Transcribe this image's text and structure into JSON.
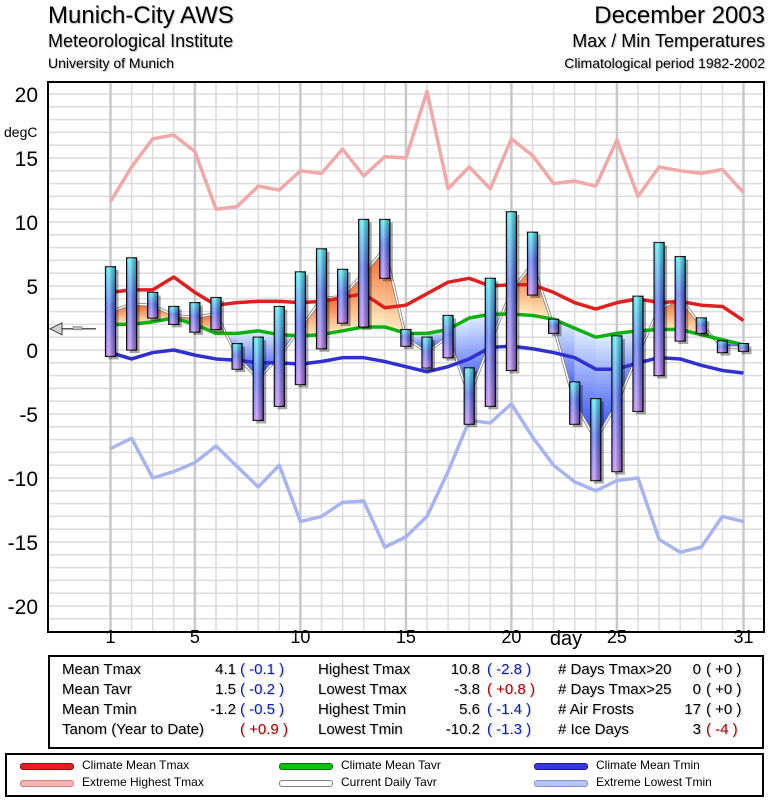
{
  "header": {
    "station": "Munich-City AWS",
    "institute": "Meteorological Institute",
    "university": "University of Munich",
    "month": "December 2003",
    "subtitle": "Max / Min Temperatures",
    "period": "Climatological period 1982-2002"
  },
  "chart_data": {
    "type": "bar",
    "title": "Max / Min Temperatures",
    "xlabel": "day",
    "ylabel": "degC",
    "ylim": [
      -20,
      20
    ],
    "xlim": [
      1,
      31
    ],
    "grid": true,
    "x_tick_labels": [
      "1",
      "5",
      "10",
      "15",
      "20",
      "25",
      "31"
    ],
    "y_tick_labels": [
      "20",
      "15",
      "10",
      "5",
      "0",
      "-5",
      "-10",
      "-15",
      "-20"
    ],
    "days": [
      1,
      2,
      3,
      4,
      5,
      6,
      7,
      8,
      9,
      10,
      11,
      12,
      13,
      14,
      15,
      16,
      17,
      18,
      19,
      20,
      21,
      22,
      23,
      24,
      25,
      26,
      27,
      28,
      29,
      30,
      31
    ],
    "daily_tmax": [
      6.5,
      7.2,
      4.5,
      3.4,
      3.7,
      4.1,
      0.5,
      1.0,
      3.4,
      6.1,
      7.9,
      6.3,
      10.2,
      10.2,
      1.6,
      1.0,
      2.7,
      -1.4,
      5.6,
      10.8,
      9.2,
      2.4,
      -2.5,
      -3.8,
      1.1,
      4.2,
      8.4,
      7.3,
      2.5,
      0.7,
      0.5
    ],
    "daily_tmin": [
      -0.5,
      0.0,
      2.5,
      2.0,
      1.4,
      1.6,
      -1.5,
      -5.5,
      -4.4,
      -2.7,
      0.1,
      2.1,
      1.8,
      5.6,
      0.3,
      -1.4,
      -0.6,
      -5.8,
      -4.4,
      -1.6,
      4.3,
      1.3,
      -5.8,
      -10.2,
      -9.5,
      -4.8,
      -2.0,
      0.7,
      1.3,
      -0.2,
      -0.1
    ],
    "series": [
      {
        "name": "Climate Mean Tmax",
        "color": "#e02020",
        "values": [
          4.5,
          4.7,
          4.7,
          5.7,
          4.5,
          3.5,
          3.7,
          3.8,
          3.8,
          3.7,
          3.8,
          4.1,
          4.4,
          3.3,
          3.5,
          4.4,
          5.3,
          5.6,
          5.0,
          5.1,
          5.1,
          4.5,
          3.7,
          3.2,
          3.7,
          4.0,
          3.7,
          3.8,
          3.5,
          3.4,
          2.3
        ]
      },
      {
        "name": "Extreme Highest Tmax",
        "color": "#f0a8a8",
        "values": [
          11.6,
          14.3,
          16.5,
          16.8,
          15.5,
          11.0,
          11.2,
          12.8,
          12.5,
          14.0,
          13.8,
          15.7,
          13.6,
          15.1,
          15.0,
          20.2,
          12.6,
          14.3,
          12.6,
          16.5,
          15.2,
          13.0,
          13.2,
          12.8,
          16.4,
          12.0,
          14.3,
          14.0,
          13.8,
          14.1,
          12.3
        ]
      },
      {
        "name": "Climate Mean Tavr",
        "color": "#10b010",
        "values": [
          2.0,
          2.0,
          2.2,
          2.5,
          2.0,
          1.3,
          1.3,
          1.5,
          1.2,
          1.1,
          1.2,
          1.5,
          1.8,
          1.8,
          1.3,
          1.3,
          1.6,
          2.5,
          2.8,
          2.8,
          2.7,
          2.4,
          1.7,
          1.0,
          1.3,
          1.5,
          1.6,
          1.6,
          1.2,
          0.8,
          0.4
        ]
      },
      {
        "name": "Current Daily Tavr",
        "color": "#b0b0b0",
        "values": [
          3.0,
          3.6,
          3.5,
          2.7,
          2.55,
          2.85,
          -0.5,
          -2.25,
          -0.5,
          1.7,
          4.0,
          4.2,
          6.0,
          7.9,
          0.95,
          -0.2,
          1.05,
          -3.6,
          0.6,
          4.6,
          6.75,
          1.85,
          -4.15,
          -7.0,
          -4.2,
          -0.3,
          3.2,
          4.0,
          1.9,
          0.25,
          0.2
        ]
      },
      {
        "name": "Climate Mean Tmin",
        "color": "#3030d0",
        "values": [
          -0.2,
          -0.7,
          -0.2,
          0.0,
          -0.4,
          -0.7,
          -0.8,
          -1.0,
          -1.0,
          -1.1,
          -0.9,
          -0.6,
          -0.6,
          -0.9,
          -1.3,
          -1.7,
          -1.3,
          -0.7,
          0.2,
          0.3,
          0.1,
          -0.2,
          -0.6,
          -1.5,
          -1.5,
          -1.0,
          -0.6,
          -0.7,
          -1.2,
          -1.6,
          -1.8
        ]
      },
      {
        "name": "Extreme Lowest Tmin",
        "color": "#a8b4f0",
        "values": [
          -7.7,
          -6.9,
          -10.0,
          -9.5,
          -8.8,
          -7.5,
          -9.1,
          -10.7,
          -9.0,
          -13.4,
          -13.0,
          -11.9,
          -11.8,
          -15.4,
          -14.6,
          -13.0,
          -9.5,
          -5.5,
          -5.7,
          -4.2,
          -6.8,
          -9.0,
          -10.3,
          -11.0,
          -10.2,
          -10.0,
          -14.8,
          -15.8,
          -15.4,
          -13.0,
          -13.4
        ]
      }
    ],
    "monthly_mean_marker": 1.5,
    "legend_position": "bottom"
  },
  "stats": {
    "col1": [
      {
        "label": "Mean Tmax",
        "value": "4.1",
        "diff": "( -0.1 )",
        "diff_color": "blue"
      },
      {
        "label": "Mean Tavr",
        "value": "1.5",
        "diff": "( -0.2 )",
        "diff_color": "blue"
      },
      {
        "label": "Mean Tmin",
        "value": "-1.2",
        "diff": "( -0.5 )",
        "diff_color": "blue"
      },
      {
        "label": "Tanom (Year to Date)",
        "value": "",
        "diff": "( +0.9 )",
        "diff_color": "red"
      }
    ],
    "col2": [
      {
        "label": "Highest Tmax",
        "value": "10.8",
        "diff": "( -2.8 )",
        "diff_color": "blue"
      },
      {
        "label": "Lowest Tmax",
        "value": "-3.8",
        "diff": "( +0.8 )",
        "diff_color": "red"
      },
      {
        "label": "Highest Tmin",
        "value": "5.6",
        "diff": "( -1.4 )",
        "diff_color": "blue"
      },
      {
        "label": "Lowest Tmin",
        "value": "-10.2",
        "diff": "( -1.3 )",
        "diff_color": "blue"
      }
    ],
    "col3": [
      {
        "label": "# Days Tmax>20",
        "value": "0",
        "diff": "( +0 )",
        "diff_color": "black"
      },
      {
        "label": "# Days Tmax>25",
        "value": "0",
        "diff": "( +0 )",
        "diff_color": "black"
      },
      {
        "label": "# Air Frosts",
        "value": "17",
        "diff": "( +0 )",
        "diff_color": "black"
      },
      {
        "label": "# Ice Days",
        "value": "3",
        "diff": "( -4 )",
        "diff_color": "red"
      }
    ]
  },
  "legend": [
    {
      "label": "Climate Mean Tmax",
      "color": "#e02020",
      "edge": "#901010"
    },
    {
      "label": "Climate Mean Tavr",
      "color": "#10c010",
      "edge": "#087008"
    },
    {
      "label": "Climate Mean Tmin",
      "color": "#3838e0",
      "edge": "#1a1a80"
    },
    {
      "label": "Extreme Highest Tmax",
      "color": "#f4b4b4",
      "edge": "#d08080"
    },
    {
      "label": "Current Daily Tavr",
      "color": "#ffffff",
      "edge": "#808080"
    },
    {
      "label": "Extreme Lowest Tmin",
      "color": "#b8c4f4",
      "edge": "#8090d0"
    }
  ]
}
